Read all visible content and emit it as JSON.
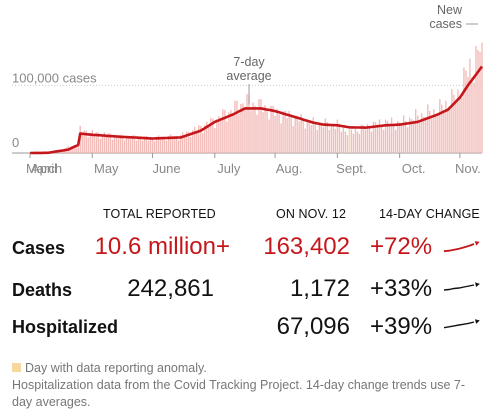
{
  "chart_data": {
    "type": "bar",
    "y_axis_labels": [
      "100,000 cases",
      "0"
    ],
    "y_ticks": [
      100000,
      0
    ],
    "ylim": [
      0,
      185000
    ],
    "x_labels": [
      "March",
      "April",
      "May",
      "June",
      "July",
      "Aug.",
      "Sept.",
      "Oct.",
      "Nov."
    ],
    "annotations": [
      {
        "text_lines": [
          "7-day",
          "average"
        ],
        "series": "7-day average"
      },
      {
        "text_lines": [
          "New",
          "cases"
        ],
        "series": "New cases"
      }
    ],
    "series": [
      {
        "name": "New cases",
        "color": "#f2b8b5",
        "anomaly_color": "#f6d79c",
        "x": [
          "Mar 1",
          "Mar 15",
          "Mar 25",
          "Apr 1",
          "Apr 4",
          "Apr 10",
          "Apr 15",
          "Apr 24",
          "May 1",
          "May 15",
          "Jun 1",
          "Jun 15",
          "Jun 25",
          "Jul 1",
          "Jul 10",
          "Jul 16",
          "Jul 24",
          "Aug 1",
          "Aug 10",
          "Aug 20",
          "Sep 1",
          "Sep 7",
          "Sep 15",
          "Sep 24",
          "Oct 1",
          "Oct 10",
          "Oct 20",
          "Oct 30",
          "Nov 4",
          "Nov 8",
          "Nov 12"
        ],
        "values": [
          30,
          3500,
          13000,
          28000,
          33000,
          32000,
          30000,
          35000,
          29000,
          24000,
          21000,
          25000,
          38000,
          48000,
          64000,
          76000,
          69000,
          60000,
          53000,
          44000,
          41000,
          30000,
          38000,
          45000,
          44000,
          54000,
          63000,
          85000,
          115000,
          130000,
          163402
        ]
      },
      {
        "name": "7-day average",
        "color": "#c5171b",
        "x": [
          "Mar 1",
          "Mar 10",
          "Mar 20",
          "Mar 25",
          "Apr 1",
          "Apr 5",
          "Apr 10",
          "Apr 15",
          "Apr 25",
          "May 1",
          "May 15",
          "Jun 1",
          "Jun 15",
          "Jun 25",
          "Jul 1",
          "Jul 10",
          "Jul 16",
          "Jul 24",
          "Aug 1",
          "Aug 10",
          "Aug 20",
          "Aug 25",
          "Sep 1",
          "Sep 7",
          "Sep 15",
          "Sep 25",
          "Oct 1",
          "Oct 10",
          "Oct 20",
          "Oct 25",
          "Nov 1",
          "Nov 5",
          "Nov 8",
          "Nov 12"
        ],
        "values": [
          40,
          300,
          5000,
          12000,
          24000,
          29000,
          30500,
          30000,
          29000,
          27000,
          24000,
          21500,
          23000,
          33000,
          46000,
          57000,
          66000,
          66000,
          62000,
          54000,
          45000,
          42000,
          41000,
          38000,
          37500,
          41000,
          42000,
          46000,
          57000,
          64000,
          82000,
          100000,
          112000,
          128000
        ]
      }
    ],
    "anomaly_days": [
      "Sep 7"
    ],
    "grid": "horizontal dotted at 100,000 cases"
  },
  "stats_table": {
    "headers": [
      "TOTAL REPORTED",
      "ON NOV. 12",
      "14-DAY CHANGE"
    ],
    "rows": [
      {
        "label": "Cases",
        "total": "10.6 million+",
        "on_day": "163,402",
        "change": "+72%",
        "highlight": true,
        "trend_values": [
          50,
          52,
          56,
          60,
          66,
          72,
          80
        ]
      },
      {
        "label": "Deaths",
        "total": "242,861",
        "on_day": "1,172",
        "change": "+33%",
        "highlight": false,
        "trend_values": [
          40,
          41,
          43,
          44,
          46,
          48,
          50
        ]
      },
      {
        "label": "Hospitalized",
        "total": "",
        "on_day": "67,096",
        "change": "+39%",
        "highlight": false,
        "trend_values": [
          40,
          42,
          44,
          46,
          48,
          50,
          53
        ]
      }
    ]
  },
  "footnotes": {
    "anomaly_legend": "Day with data reporting anomaly.",
    "source": "Hospitalization data from the Covid Tracking Project. 14-day change trends use 7-day averages."
  },
  "colors": {
    "accent_red": "#c5171b",
    "bar_pink": "#f2b8b5",
    "anomaly_yellow": "#f6d79c",
    "muted_text": "#777777"
  }
}
